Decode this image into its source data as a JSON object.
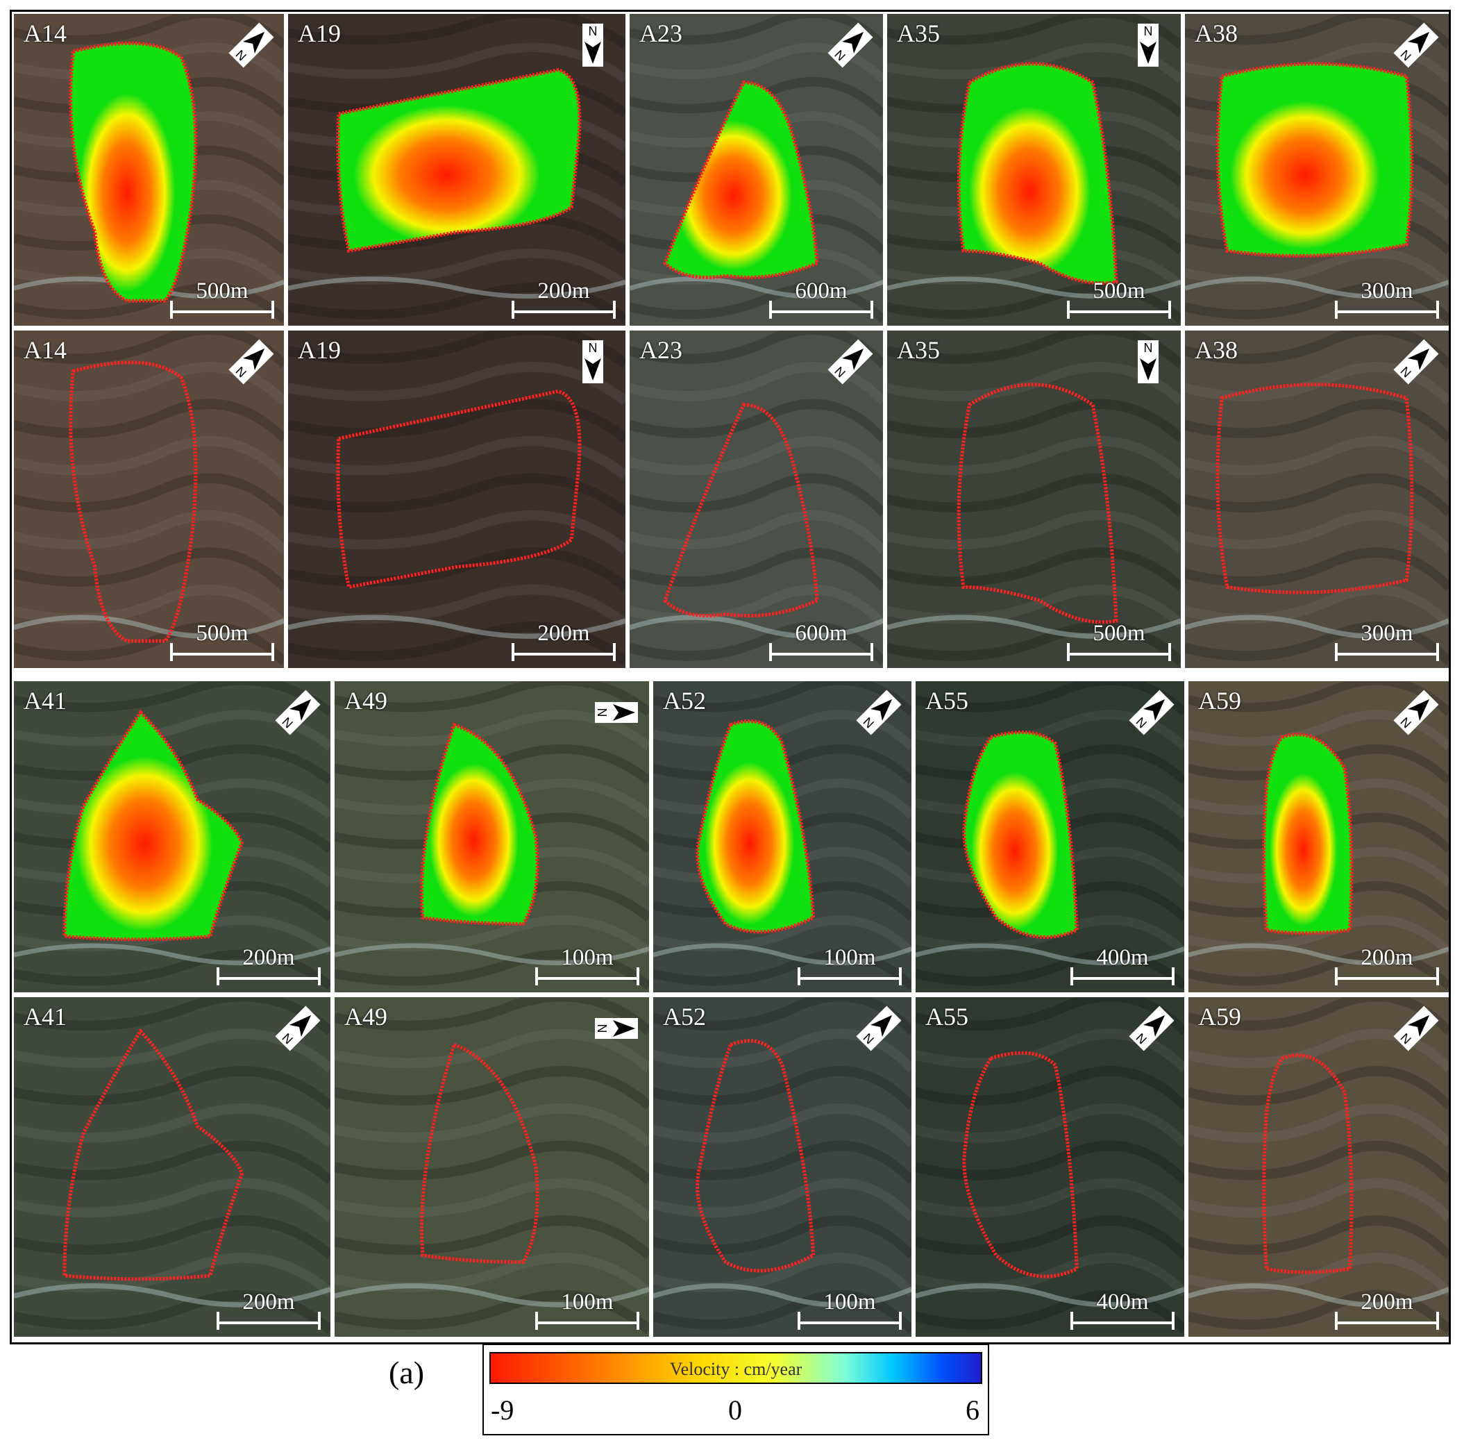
{
  "colors": {
    "deformation_red": "#ff1a00",
    "deformation_orange": "#ff7a00",
    "deformation_yellow": "#f5f500",
    "stable_green": "#10e010",
    "boundary_dashed": "#ff2020"
  },
  "panels": [
    {
      "label": "A14",
      "scale": "500m",
      "row": 0,
      "col": 0,
      "kind": "velocity",
      "north": "north-arrow-rotated"
    },
    {
      "label": "A19",
      "scale": "200m",
      "row": 0,
      "col": 1,
      "kind": "velocity",
      "north": "north-arrow-down"
    },
    {
      "label": "A23",
      "scale": "600m",
      "row": 0,
      "col": 2,
      "kind": "velocity",
      "north": "north-arrow-rotated"
    },
    {
      "label": "A35",
      "scale": "500m",
      "row": 0,
      "col": 3,
      "kind": "velocity",
      "north": "north-arrow-down"
    },
    {
      "label": "A38",
      "scale": "300m",
      "row": 0,
      "col": 4,
      "kind": "velocity",
      "north": "north-arrow-rotated"
    },
    {
      "label": "A14",
      "scale": "500m",
      "row": 1,
      "col": 0,
      "kind": "optical",
      "north": "north-arrow-rotated"
    },
    {
      "label": "A19",
      "scale": "200m",
      "row": 1,
      "col": 1,
      "kind": "optical",
      "north": "north-arrow-down"
    },
    {
      "label": "A23",
      "scale": "600m",
      "row": 1,
      "col": 2,
      "kind": "optical",
      "north": "north-arrow-rotated"
    },
    {
      "label": "A35",
      "scale": "500m",
      "row": 1,
      "col": 3,
      "kind": "optical",
      "north": "north-arrow-down"
    },
    {
      "label": "A38",
      "scale": "300m",
      "row": 1,
      "col": 4,
      "kind": "optical",
      "north": "north-arrow-rotated"
    },
    {
      "label": "A41",
      "scale": "200m",
      "row": 2,
      "col": 0,
      "kind": "velocity",
      "north": "north-arrow-rotated"
    },
    {
      "label": "A49",
      "scale": "100m",
      "row": 2,
      "col": 1,
      "kind": "velocity",
      "north": "north-arrow-right"
    },
    {
      "label": "A52",
      "scale": "100m",
      "row": 2,
      "col": 2,
      "kind": "velocity",
      "north": "north-arrow-rotated"
    },
    {
      "label": "A55",
      "scale": "400m",
      "row": 2,
      "col": 3,
      "kind": "velocity",
      "north": "north-arrow-rotated"
    },
    {
      "label": "A59",
      "scale": "200m",
      "row": 2,
      "col": 4,
      "kind": "velocity",
      "north": "north-arrow-rotated"
    },
    {
      "label": "A41",
      "scale": "200m",
      "row": 3,
      "col": 0,
      "kind": "optical",
      "north": "north-arrow-rotated"
    },
    {
      "label": "A49",
      "scale": "100m",
      "row": 3,
      "col": 1,
      "kind": "optical",
      "north": "north-arrow-right"
    },
    {
      "label": "A52",
      "scale": "100m",
      "row": 3,
      "col": 2,
      "kind": "optical",
      "north": "north-arrow-rotated"
    },
    {
      "label": "A55",
      "scale": "400m",
      "row": 3,
      "col": 3,
      "kind": "optical",
      "north": "north-arrow-rotated"
    },
    {
      "label": "A59",
      "scale": "200m",
      "row": 3,
      "col": 4,
      "kind": "optical",
      "north": "north-arrow-rotated"
    }
  ],
  "north_letter": "N",
  "figure_caption": "(a)",
  "legend": {
    "title": "Velocity : cm/year",
    "min_label": "-9",
    "mid_label": "0",
    "max_label": "6",
    "colors": [
      "#ff1a00",
      "#ff7a00",
      "#ffd500",
      "#f4ff30",
      "#7fffd4",
      "#00c8ff",
      "#0050ff",
      "#1e1ecc"
    ]
  }
}
